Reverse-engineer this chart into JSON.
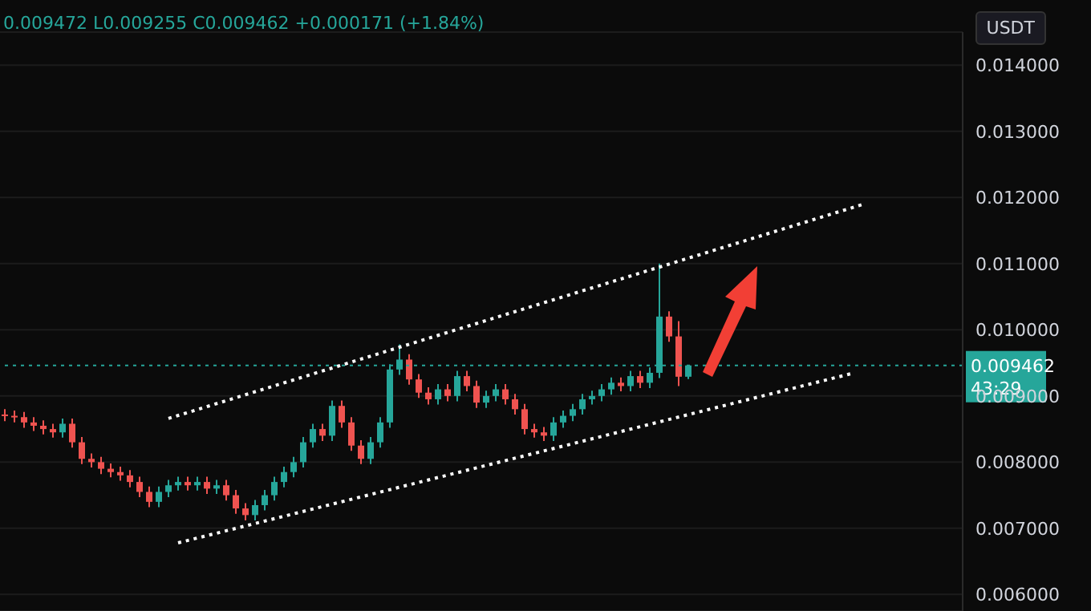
{
  "chart_data": {
    "type": "candlestick",
    "categories": [
      null,
      null,
      null,
      null,
      null,
      null,
      null,
      null,
      null,
      null,
      null,
      null,
      null,
      null,
      null,
      null,
      null,
      null,
      null,
      null,
      null,
      null,
      null,
      null,
      null,
      null,
      null,
      null,
      null,
      null,
      null,
      null,
      null,
      null,
      null,
      null,
      null,
      null,
      null,
      null,
      null,
      null,
      null,
      null,
      null,
      null,
      null,
      null,
      null,
      null,
      null,
      null,
      null,
      null,
      null,
      null,
      null,
      null,
      null,
      null,
      null,
      null,
      null,
      null,
      null,
      null,
      null,
      null,
      null,
      null,
      null,
      null,
      null,
      null,
      null,
      null,
      null,
      null,
      null,
      null,
      null,
      null,
      null,
      null,
      null,
      null,
      null,
      null,
      null,
      null,
      null,
      null,
      null,
      null,
      null,
      null,
      null,
      null,
      null,
      null
    ],
    "ohlc": [
      [
        0.00872,
        0.0088,
        0.00862,
        0.0087
      ],
      [
        0.0087,
        0.00878,
        0.0086,
        0.00868
      ],
      [
        0.00868,
        0.00876,
        0.00852,
        0.0086
      ],
      [
        0.0086,
        0.00868,
        0.00847,
        0.00855
      ],
      [
        0.00855,
        0.00863,
        0.00842,
        0.0085
      ],
      [
        0.0085,
        0.00858,
        0.00837,
        0.00845
      ],
      [
        0.00845,
        0.00866,
        0.00837,
        0.00858
      ],
      [
        0.00858,
        0.00866,
        0.00822,
        0.0083
      ],
      [
        0.0083,
        0.00838,
        0.00797,
        0.00805
      ],
      [
        0.00805,
        0.00813,
        0.00792,
        0.008
      ],
      [
        0.008,
        0.00808,
        0.00782,
        0.0079
      ],
      [
        0.0079,
        0.00798,
        0.00777,
        0.00785
      ],
      [
        0.00785,
        0.00793,
        0.00772,
        0.0078
      ],
      [
        0.0078,
        0.00788,
        0.00762,
        0.0077
      ],
      [
        0.0077,
        0.00778,
        0.00747,
        0.00755
      ],
      [
        0.00755,
        0.00763,
        0.00732,
        0.0074
      ],
      [
        0.0074,
        0.00763,
        0.00732,
        0.00755
      ],
      [
        0.00755,
        0.00773,
        0.00747,
        0.00765
      ],
      [
        0.00765,
        0.00778,
        0.00757,
        0.0077
      ],
      [
        0.0077,
        0.00778,
        0.00757,
        0.00765
      ],
      [
        0.00765,
        0.00778,
        0.00757,
        0.0077
      ],
      [
        0.0077,
        0.00778,
        0.00752,
        0.0076
      ],
      [
        0.0076,
        0.00773,
        0.00752,
        0.00765
      ],
      [
        0.00765,
        0.00773,
        0.00742,
        0.0075
      ],
      [
        0.0075,
        0.00758,
        0.00722,
        0.0073
      ],
      [
        0.0073,
        0.00738,
        0.00712,
        0.0072
      ],
      [
        0.0072,
        0.00743,
        0.00712,
        0.00735
      ],
      [
        0.00735,
        0.00758,
        0.00727,
        0.0075
      ],
      [
        0.0075,
        0.00778,
        0.00742,
        0.0077
      ],
      [
        0.0077,
        0.00793,
        0.00762,
        0.00785
      ],
      [
        0.00785,
        0.00808,
        0.00777,
        0.008
      ],
      [
        0.008,
        0.00838,
        0.00792,
        0.0083
      ],
      [
        0.0083,
        0.00858,
        0.00822,
        0.0085
      ],
      [
        0.0085,
        0.00858,
        0.00832,
        0.0084
      ],
      [
        0.0084,
        0.00893,
        0.00832,
        0.00885
      ],
      [
        0.00885,
        0.00893,
        0.00852,
        0.0086
      ],
      [
        0.0086,
        0.00868,
        0.00817,
        0.00825
      ],
      [
        0.00825,
        0.00833,
        0.00797,
        0.00805
      ],
      [
        0.00805,
        0.00838,
        0.00797,
        0.0083
      ],
      [
        0.0083,
        0.00868,
        0.00822,
        0.0086
      ],
      [
        0.0086,
        0.00948,
        0.00852,
        0.0094
      ],
      [
        0.0094,
        0.00978,
        0.00932,
        0.00955
      ],
      [
        0.00955,
        0.00963,
        0.00917,
        0.00925
      ],
      [
        0.00925,
        0.00933,
        0.00897,
        0.00905
      ],
      [
        0.00905,
        0.00913,
        0.00887,
        0.00895
      ],
      [
        0.00895,
        0.00918,
        0.00887,
        0.0091
      ],
      [
        0.0091,
        0.00918,
        0.00892,
        0.009
      ],
      [
        0.009,
        0.00938,
        0.00892,
        0.0093
      ],
      [
        0.0093,
        0.00938,
        0.00907,
        0.00915
      ],
      [
        0.00915,
        0.00923,
        0.00882,
        0.0089
      ],
      [
        0.0089,
        0.00908,
        0.00882,
        0.009
      ],
      [
        0.009,
        0.00918,
        0.00892,
        0.0091
      ],
      [
        0.0091,
        0.00918,
        0.00887,
        0.00895
      ],
      [
        0.00895,
        0.00903,
        0.00872,
        0.0088
      ],
      [
        0.0088,
        0.00888,
        0.00842,
        0.0085
      ],
      [
        0.0085,
        0.00858,
        0.00837,
        0.00845
      ],
      [
        0.00845,
        0.00853,
        0.00832,
        0.0084
      ],
      [
        0.0084,
        0.00868,
        0.00832,
        0.0086
      ],
      [
        0.0086,
        0.00878,
        0.00852,
        0.0087
      ],
      [
        0.0087,
        0.00888,
        0.00862,
        0.0088
      ],
      [
        0.0088,
        0.00903,
        0.00872,
        0.00895
      ],
      [
        0.00895,
        0.00908,
        0.00887,
        0.009
      ],
      [
        0.009,
        0.00918,
        0.00892,
        0.0091
      ],
      [
        0.0091,
        0.00928,
        0.00902,
        0.0092
      ],
      [
        0.0092,
        0.00928,
        0.00907,
        0.00915
      ],
      [
        0.00915,
        0.00938,
        0.00907,
        0.0093
      ],
      [
        0.0093,
        0.00938,
        0.00912,
        0.0092
      ],
      [
        0.0092,
        0.00943,
        0.00912,
        0.00935
      ],
      [
        0.00935,
        0.011,
        0.00927,
        0.0102
      ],
      [
        0.0102,
        0.01028,
        0.00982,
        0.0099
      ],
      [
        0.0099,
        0.01013,
        0.00915,
        0.009291
      ],
      [
        0.009291,
        0.009472,
        0.009255,
        0.009462
      ],
      null,
      null,
      null,
      null,
      null,
      null,
      null,
      null,
      null,
      null,
      null,
      null,
      null,
      null,
      null,
      null,
      null,
      null,
      null,
      null,
      null,
      null,
      null,
      null,
      null,
      null,
      null,
      null
    ],
    "series": [
      {
        "type": "line",
        "values": [
          null,
          null,
          null,
          null,
          null,
          null,
          null,
          null,
          null,
          null,
          null,
          null,
          null,
          null,
          null,
          null,
          null,
          0.00866,
          null,
          null,
          null,
          null,
          null,
          null,
          null,
          null,
          null,
          null,
          null,
          null,
          null,
          null,
          null,
          null,
          null,
          null,
          null,
          null,
          null,
          null,
          null,
          null,
          null,
          null,
          null,
          null,
          null,
          null,
          null,
          null,
          null,
          null,
          null,
          null,
          null,
          null,
          null,
          null,
          null,
          null,
          null,
          null,
          null,
          null,
          null,
          null,
          null,
          null,
          null,
          null,
          null,
          null,
          null,
          null,
          null,
          null,
          null,
          null,
          null,
          null,
          null,
          null,
          null,
          null,
          null,
          null,
          null,
          null,
          null,
          0.01189,
          null,
          null,
          null,
          null,
          null,
          null,
          null,
          null,
          null,
          null
        ],
        "color": "#ffffff",
        "line_style": "dotted",
        "marker": "none"
      },
      {
        "type": "line",
        "values": [
          null,
          null,
          null,
          null,
          null,
          null,
          null,
          null,
          null,
          null,
          null,
          null,
          null,
          null,
          null,
          null,
          null,
          null,
          0.00678,
          null,
          null,
          null,
          null,
          null,
          null,
          null,
          null,
          null,
          null,
          null,
          null,
          null,
          null,
          null,
          null,
          null,
          null,
          null,
          null,
          null,
          null,
          null,
          null,
          null,
          null,
          null,
          null,
          null,
          null,
          null,
          null,
          null,
          null,
          null,
          null,
          null,
          null,
          null,
          null,
          null,
          null,
          null,
          null,
          null,
          null,
          null,
          null,
          null,
          null,
          null,
          null,
          null,
          null,
          null,
          null,
          null,
          null,
          null,
          null,
          null,
          null,
          null,
          null,
          null,
          null,
          null,
          null,
          null,
          0.00934,
          null,
          null,
          null,
          null,
          null,
          null,
          null,
          null,
          null,
          null,
          null
        ],
        "color": "#ffffff",
        "line_style": "dotted",
        "marker": "none"
      }
    ],
    "ylim": [
      0.00575,
      0.0145
    ],
    "yticks": [
      {
        "value": 0.006,
        "label": "0.006000"
      },
      {
        "value": 0.007,
        "label": "0.007000"
      },
      {
        "value": 0.008,
        "label": "0.008000"
      },
      {
        "value": 0.009,
        "label": "0.009000"
      },
      {
        "value": 0.01,
        "label": "0.010000"
      },
      {
        "value": 0.011,
        "label": "0.011000"
      },
      {
        "value": 0.012,
        "label": "0.012000"
      },
      {
        "value": 0.013,
        "label": "0.013000"
      },
      {
        "value": 0.014,
        "label": "0.014000"
      }
    ],
    "tick_labels": "y",
    "grid": "y",
    "ref_lines": [
      {
        "axis": "y",
        "value": 0.009462,
        "label": "0.009462",
        "color": "#26a69a",
        "line_style": "dotted"
      }
    ],
    "annotations": [
      "0.009472 L0.009255 C0.009462 +0.000171 (+1.84%)",
      "USDT",
      "43:29"
    ]
  }
}
